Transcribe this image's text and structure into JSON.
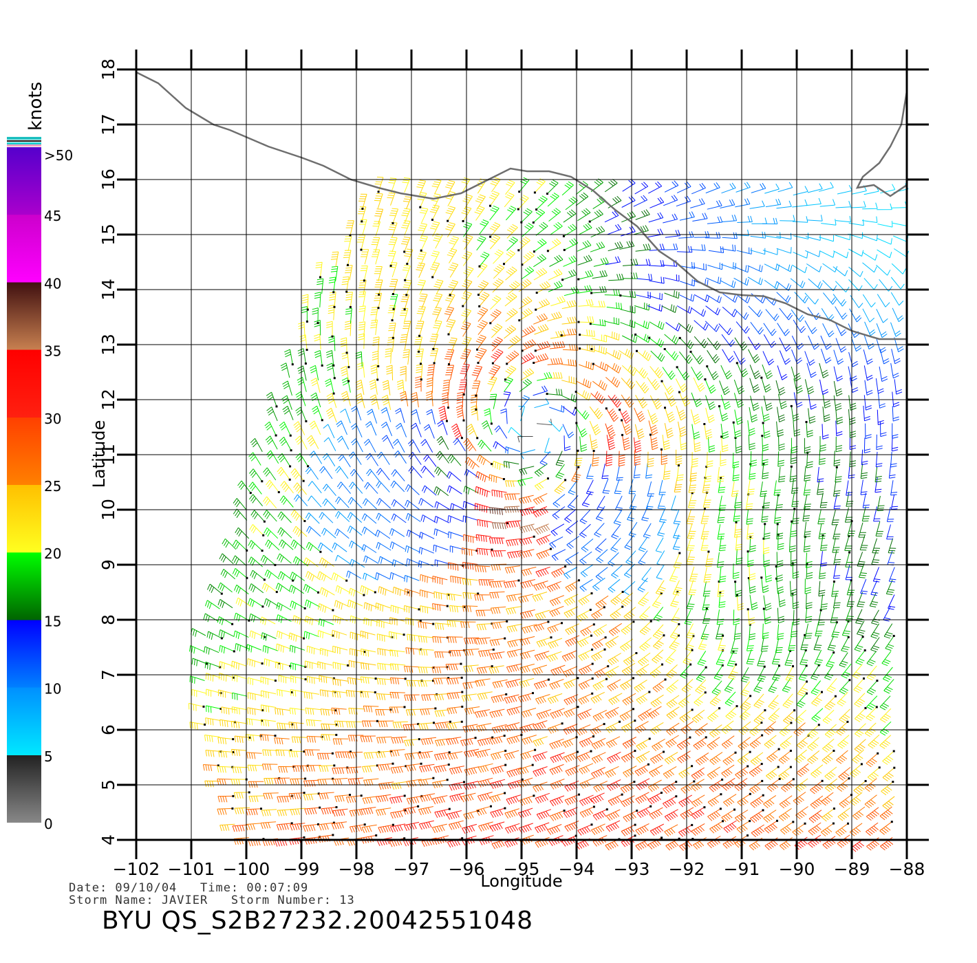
{
  "plot": {
    "x_axis_label": "Longitude",
    "y_axis_label": "Latitude",
    "lon_range": [
      -102,
      -88
    ],
    "lat_range": [
      4,
      18
    ],
    "lon_ticks": [
      "−102",
      "−101",
      "−100",
      "−99",
      "−98",
      "−97",
      "−96",
      "−95",
      "−94",
      "−93",
      "−92",
      "−91",
      "−90",
      "−89",
      "−88"
    ],
    "lat_ticks": [
      "4",
      "5",
      "6",
      "7",
      "8",
      "9",
      "10",
      "11",
      "12",
      "13",
      "14",
      "15",
      "16",
      "17",
      "18"
    ],
    "grid": true
  },
  "colorbar": {
    "unit_label": "knots",
    "labels": [
      ">50",
      "45",
      "40",
      "35",
      "30",
      "25",
      "20",
      "15",
      "10",
      "5",
      "0"
    ],
    "segments": [
      {
        "from_kt": 0,
        "to_kt": 5,
        "colors": [
          "#888888",
          "#222222"
        ]
      },
      {
        "from_kt": 5,
        "to_kt": 10,
        "colors": [
          "#00e8ff",
          "#0090ff"
        ]
      },
      {
        "from_kt": 10,
        "to_kt": 15,
        "colors": [
          "#0080ff",
          "#0000ff"
        ]
      },
      {
        "from_kt": 15,
        "to_kt": 20,
        "colors": [
          "#006400",
          "#00ff00"
        ]
      },
      {
        "from_kt": 20,
        "to_kt": 25,
        "colors": [
          "#ffff20",
          "#ffc000"
        ]
      },
      {
        "from_kt": 25,
        "to_kt": 30,
        "colors": [
          "#ff8000",
          "#ff4000"
        ]
      },
      {
        "from_kt": 30,
        "to_kt": 35,
        "colors": [
          "#ff2010",
          "#ff0000"
        ]
      },
      {
        "from_kt": 35,
        "to_kt": 40,
        "colors": [
          "#c88050",
          "#401010"
        ]
      },
      {
        "from_kt": 40,
        "to_kt": 45,
        "colors": [
          "#ff00ff",
          "#cc00cc"
        ]
      },
      {
        "from_kt": 45,
        "to_kt": 50,
        "colors": [
          "#aa00cc",
          "#5500cc"
        ]
      }
    ]
  },
  "footer": {
    "date_line": "Date: 09/10/04   Time: 00:07:09",
    "storm_line": "Storm Name: JAVIER   Storm Number: 13",
    "title": "BYU QS_S2B27232.20042551048"
  },
  "wind_field": {
    "swath_corners_lonlat": [
      [
        -97.7,
        15.9
      ],
      [
        -88.0,
        15.8
      ],
      [
        -88.0,
        4.0
      ],
      [
        -100.2,
        4.0
      ],
      [
        -101.0,
        7.0
      ],
      [
        -99.6,
        11.5
      ],
      [
        -98.8,
        14.0
      ]
    ],
    "storm_centre_lonlat": [
      -94.8,
      11.3
    ],
    "barb_spacing_deg": 0.26
  },
  "coastline": {
    "mexico_lonlat": [
      [
        -102,
        17.95
      ],
      [
        -101.6,
        17.75
      ],
      [
        -101.1,
        17.3
      ],
      [
        -100.6,
        17.0
      ],
      [
        -100.3,
        16.9
      ],
      [
        -99.6,
        16.6
      ],
      [
        -99.0,
        16.4
      ],
      [
        -98.6,
        16.25
      ],
      [
        -98.1,
        16.0
      ],
      [
        -97.6,
        15.85
      ],
      [
        -97.2,
        15.75
      ],
      [
        -96.6,
        15.65
      ],
      [
        -96.1,
        15.75
      ],
      [
        -95.6,
        16.0
      ],
      [
        -95.2,
        16.2
      ],
      [
        -94.9,
        16.15
      ],
      [
        -94.5,
        16.15
      ],
      [
        -94.1,
        16.05
      ],
      [
        -93.7,
        15.8
      ],
      [
        -93.3,
        15.45
      ],
      [
        -92.9,
        15.15
      ],
      [
        -92.5,
        14.7
      ],
      [
        -92.2,
        14.5
      ],
      [
        -91.8,
        14.15
      ],
      [
        -91.4,
        13.95
      ],
      [
        -91.0,
        13.9
      ],
      [
        -90.6,
        13.88
      ],
      [
        -90.2,
        13.75
      ],
      [
        -89.8,
        13.55
      ],
      [
        -89.4,
        13.45
      ],
      [
        -89.0,
        13.25
      ],
      [
        -88.5,
        13.1
      ],
      [
        -88.0,
        13.1
      ]
    ],
    "yucatan_lonlat": [
      [
        -88.0,
        17.6
      ],
      [
        -88.1,
        17.0
      ],
      [
        -88.3,
        16.6
      ],
      [
        -88.5,
        16.3
      ],
      [
        -88.8,
        16.05
      ],
      [
        -88.9,
        15.85
      ],
      [
        -88.6,
        15.9
      ],
      [
        -88.3,
        15.7
      ],
      [
        -88.0,
        15.9
      ]
    ]
  }
}
